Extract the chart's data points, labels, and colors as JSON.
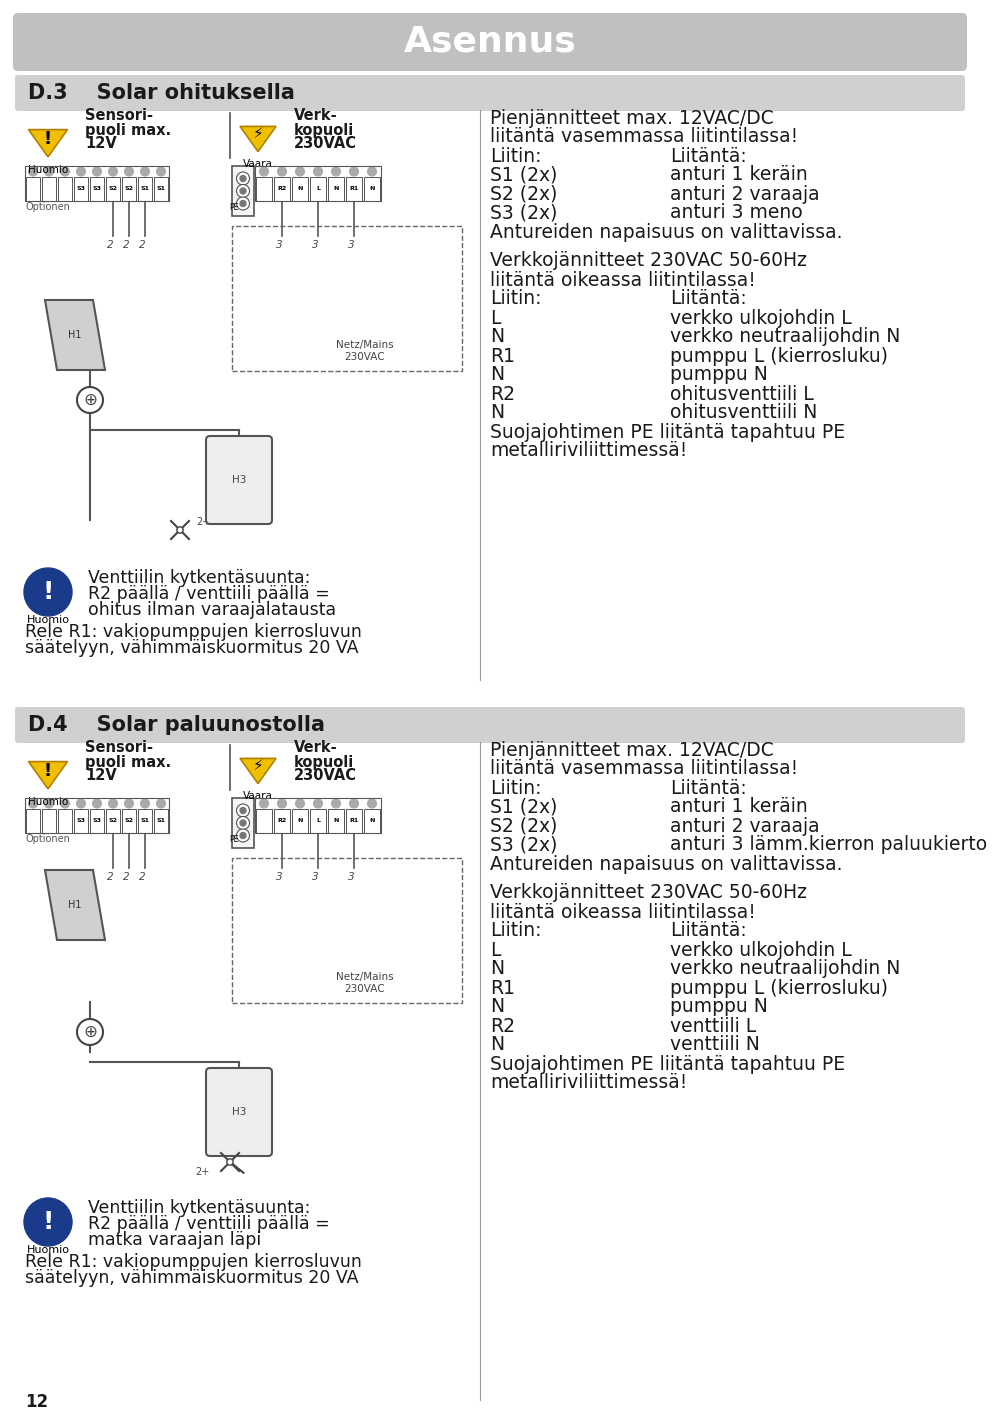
{
  "bg_color": "#ffffff",
  "header_bg": "#c0c0c0",
  "header_text": "Asennus",
  "header_text_color": "#ffffff",
  "section_bg": "#d0d0d0",
  "section_d3_text": "D.3    Solar ohituksella",
  "section_d4_text": "D.4    Solar paluunostolla",
  "footer_number": "12",
  "divider_color": "#999999",
  "dark_color": "#1a1a1a",
  "d3": {
    "rc_b1_line1": "Pienjännitteet max. 12VAC/DC",
    "rc_b1_line2": "liitäntä vasemmassa liitintilassa!",
    "rc_liitin1": "Liitin:",
    "rc_liitanta1": "Liitäntä:",
    "rc_b1_rows": [
      [
        "S1 (2x)",
        "anturi 1 keräin"
      ],
      [
        "S2 (2x)",
        "anturi 2 varaaja"
      ],
      [
        "S3 (2x)",
        "anturi 3 meno"
      ]
    ],
    "rc_b1_note": "Antureiden napaisuus on valittavissa.",
    "rc_b2_line1": "Verkkojännitteet 230VAC 50-60Hz",
    "rc_b2_line2": "liitäntä oikeassa liitintilassa!",
    "rc_liitin2": "Liitin:",
    "rc_liitanta2": "Liitäntä:",
    "rc_b2_rows": [
      [
        "L",
        "verkko ulkojohdin L"
      ],
      [
        "N",
        "verkko neutraalijohdin N"
      ],
      [
        "R1",
        "pumppu L (kierrosluku)"
      ],
      [
        "N",
        "pumppu N"
      ],
      [
        "R2",
        "ohitusventtiili L"
      ],
      [
        "N",
        "ohitusventtiili N"
      ]
    ],
    "rc_b2_note1": "Suojajohtimen PE liitäntä tapahtuu PE",
    "rc_b2_note2": "metalliriviliittimessä!",
    "warn_line1": "Venttiilin kytkentäsuunta:",
    "warn_line2": "R2 päällä / venttiili päällä =",
    "warn_line3": "ohitus ilman varaajalatausta",
    "rele_line1": "Rele R1: vakiopumppujen kierrosluvun",
    "rele_line2": "säätelyyn, vähimmäiskuormitus 20 VA"
  },
  "d4": {
    "rc_b1_line1": "Pienjännitteet max. 12VAC/DC",
    "rc_b1_line2": "liitäntä vasemmassa liitintilassa!",
    "rc_liitin1": "Liitin:",
    "rc_liitanta1": "Liitäntä:",
    "rc_b1_rows": [
      [
        "S1 (2x)",
        "anturi 1 keräin"
      ],
      [
        "S2 (2x)",
        "anturi 2 varaaja"
      ],
      [
        "S3 (2x)",
        "anturi 3 lämm.kierron paluukierto"
      ]
    ],
    "rc_b1_note": "Antureiden napaisuus on valittavissa.",
    "rc_b2_line1": "Verkkojännitteet 230VAC 50-60Hz",
    "rc_b2_line2": "liitäntä oikeassa liitintilassa!",
    "rc_liitin2": "Liitin:",
    "rc_liitanta2": "Liitäntä:",
    "rc_b2_rows": [
      [
        "L",
        "verkko ulkojohdin L"
      ],
      [
        "N",
        "verkko neutraalijohdin N"
      ],
      [
        "R1",
        "pumppu L (kierrosluku)"
      ],
      [
        "N",
        "pumppu N"
      ],
      [
        "R2",
        "venttiili L"
      ],
      [
        "N",
        "venttiili N"
      ]
    ],
    "rc_b2_note1": "Suojajohtimen PE liitäntä tapahtuu PE",
    "rc_b2_note2": "metalliriviliittimessä!",
    "warn_line1": "Venttiilin kytkentäsuunta:",
    "warn_line2": "R2 päällä / venttiili päällä =",
    "warn_line3": "matka varaajan läpi",
    "rele_line1": "Rele R1: vakiopumppujen kierrosluvun",
    "rele_line2": "säätelyyn, vähimmäiskuormitus 20 VA"
  },
  "labels_12v": [
    "",
    "",
    "",
    "S3",
    "S3",
    "S2",
    "S2",
    "S1",
    "S1"
  ],
  "labels_230v": [
    "",
    "R2",
    "N",
    "L",
    "N",
    "R1",
    "N"
  ]
}
